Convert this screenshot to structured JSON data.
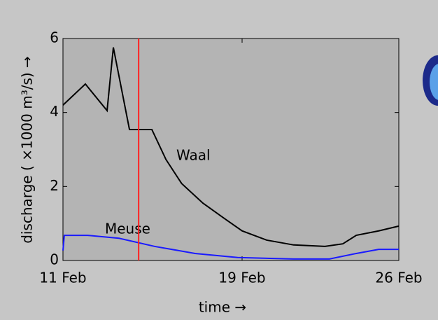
{
  "chart_data": {
    "type": "line",
    "ylabel": "discharge ( ×1000 m³/s) →",
    "xlabel": "time →",
    "xlim": [
      0,
      15
    ],
    "xticks": [
      {
        "value": 0,
        "label": "11 Feb"
      },
      {
        "value": 8,
        "label": "19 Feb"
      },
      {
        "value": 15,
        "label": "26 Feb"
      }
    ],
    "ylim": [
      0,
      6
    ],
    "yticks": [
      0,
      2,
      4,
      6
    ],
    "marker_x": 3.38,
    "marker_color": "#ff2020",
    "series": [
      {
        "name": "Waal",
        "color": "#000000",
        "x": [
          0,
          1,
          1.97,
          2.25,
          2.97,
          3.44,
          3.97,
          4.6,
          5.3,
          6.25,
          7.2,
          8,
          9.1,
          10.3,
          11.7,
          12.5,
          13.1,
          14.1,
          15
        ],
        "values": [
          4.2,
          4.77,
          4.05,
          5.76,
          3.54,
          3.54,
          3.54,
          2.73,
          2.08,
          1.55,
          1.14,
          0.8,
          0.55,
          0.42,
          0.38,
          0.45,
          0.68,
          0.8,
          0.93
        ]
      },
      {
        "name": "Meuse",
        "color": "#1a1aff",
        "x": [
          0,
          0.06,
          1.1,
          2.5,
          4.1,
          5.9,
          7.8,
          10.3,
          11.9,
          13.1,
          14.1,
          15
        ],
        "values": [
          0.27,
          0.68,
          0.68,
          0.6,
          0.38,
          0.19,
          0.08,
          0.04,
          0.04,
          0.19,
          0.3,
          0.3
        ]
      }
    ]
  }
}
